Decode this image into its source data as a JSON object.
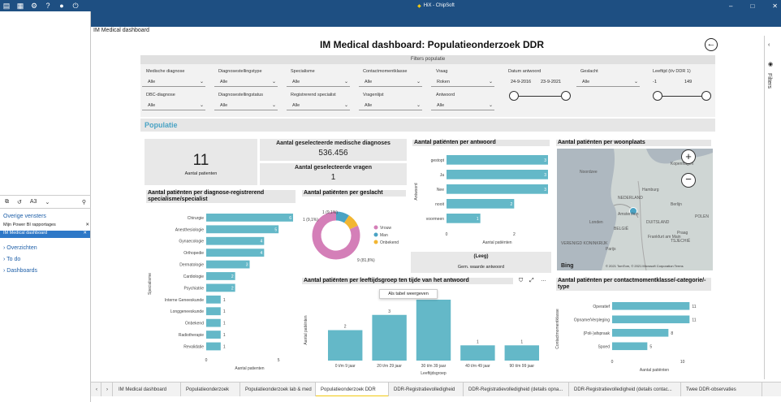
{
  "app": {
    "title": "HiX - ChipSoft"
  },
  "top_icons": [
    "document-icon",
    "grid-icon",
    "gear-icon",
    "help-icon",
    "user-icon",
    "power-icon"
  ],
  "left_pane": {
    "tool_label": "A3",
    "section_header": "Overige vensters",
    "items": [
      {
        "label": "Mijn Power BI rapportages"
      },
      {
        "label": "IM Medical dashboard"
      }
    ],
    "sections": [
      "Overzichten",
      "To do",
      "Dashboards"
    ]
  },
  "doc_title": "IM Medical dashboard",
  "report": {
    "title": "IM Medical dashboard: Populatieonderzoek DDR",
    "filters_header": "Filters populatie",
    "filters": [
      {
        "label": "Medische diagnose",
        "value": "Alle"
      },
      {
        "label": "Diagnosestellingstype",
        "value": "Alle"
      },
      {
        "label": "Specialisme",
        "value": "Alle"
      },
      {
        "label": "Contactmomentklasse",
        "value": "Alle"
      },
      {
        "label": "Vraag",
        "value": "Roken"
      },
      {
        "label": "DBC-diagnose",
        "value": "Alle"
      },
      {
        "label": "Diagnosestellingstatus",
        "value": "Alle"
      },
      {
        "label": "Registrerend specialist",
        "value": "Alle"
      },
      {
        "label": "Vragenlijst",
        "value": "Alle"
      },
      {
        "label": "Antwoord",
        "value": "Alle"
      }
    ],
    "datum": {
      "label": "Datum antwoord",
      "from": "24-9-2016",
      "to": "23-9-2021"
    },
    "geslacht": {
      "label": "Geslacht",
      "value": "Alle"
    },
    "leeftijd": {
      "label": "Leeftijd (t/v DDR 1)",
      "from": "-1",
      "to": "149"
    },
    "section": "Populatie",
    "kpi_patients": {
      "value": "11",
      "label": "Aantal patienten"
    },
    "kpi_diagnoses": {
      "title": "Aantal geselecteerde medische diagnoses",
      "value": "536.456"
    },
    "kpi_vragen": {
      "title": "Aantal geselecteerde vragen",
      "value": "1"
    },
    "kpi_leeg": {
      "title": "(Leeg)",
      "label": "Gem. waarde antwoord"
    },
    "map": {
      "title": "Aantal patiënten per woonplaats",
      "footer": "© 2021 TomTom, © 2021 Microsoft Corporation Terms",
      "brand": "Bing",
      "labels": [
        "Noordzee",
        "NEDERLAND",
        "DUITSLAND",
        "Berlijn",
        "Hamburg",
        "POLEN",
        "Londen",
        "BELGIË",
        "Parijs",
        "Praag",
        "TSJECHIË",
        "VERENIGD KONINKRIJK",
        "Amsterdam",
        "Kopenhagen",
        "Frankfurt am Main"
      ]
    },
    "tooltip": "Als tabel weergeven",
    "filter_pane": "Filters"
  },
  "tabs": [
    "IM Medical dashboard",
    "Populatieonderzoek",
    "Populatieonderzoek lab & med",
    "Populatieonderzoek DDR",
    "DDR-Registratievolledigheid",
    "DDR-Registratievolledigheid (details opna...",
    "DDR-Registratievolledigheid (details contac...",
    "Twee DDR-observaties"
  ],
  "colors": {
    "bar": "#64b8c8",
    "header": "#1e4f82",
    "accent": "#f2c811",
    "donut_man": "#4aa3c4",
    "donut_vrouw": "#d47fb8",
    "donut_onbekend": "#f2b632"
  },
  "chart_data": [
    {
      "type": "bar",
      "title": "Aantal patiënten per diagnose-registrerend specialisme/specialist",
      "ylabel": "Specialisme",
      "xlabel": "Aantal patienten",
      "categories": [
        "Chirurgie",
        "Anesthesiologie",
        "Gynaecologie",
        "Orthopedie",
        "Dermatologie",
        "Cardiologie",
        "Psychiatrie",
        "Interne Geneeskunde",
        "Longgeneeskunde",
        "Onbekend",
        "Radiotherapie",
        "Revalidatie"
      ],
      "values": [
        6,
        5,
        4,
        4,
        3,
        2,
        2,
        1,
        1,
        1,
        1,
        1
      ],
      "xticks": [
        "0",
        "5"
      ],
      "xlim": [
        0,
        6
      ]
    },
    {
      "type": "pie",
      "title": "Aantal patiënten per geslacht",
      "series": [
        {
          "name": "Vrouw",
          "value": 9,
          "label": "9 (81,8%)"
        },
        {
          "name": "Man",
          "value": 1,
          "label": "1 (9,1%)"
        },
        {
          "name": "Onbekend",
          "value": 1,
          "label": "1 (9,1%)"
        }
      ]
    },
    {
      "type": "bar",
      "title": "Aantal patiënten per antwoord",
      "ylabel": "Antwoord",
      "xlabel": "Aantal patiënten",
      "categories": [
        "gestopt",
        "Ja",
        "Nee",
        "nooit",
        "voormeen"
      ],
      "values": [
        3,
        3,
        3,
        2,
        1
      ],
      "xticks": [
        "0",
        "2"
      ],
      "xlim": [
        0,
        3
      ]
    },
    {
      "type": "bar",
      "title": "Aantal patiënten per leeftijdsgroep ten tijde van het antwoord",
      "ylabel": "Aantal patiënten",
      "xlabel": "Leeftijdsgroep",
      "categories": [
        "0 t/m 9 jaar",
        "20 t/m 29 jaar",
        "30 t/m 39 jaar",
        "40 t/m 49 jaar",
        "90 t/m 99 jaar"
      ],
      "values": [
        2,
        3,
        4,
        1,
        1
      ],
      "ylim": [
        0,
        4
      ]
    },
    {
      "type": "bar",
      "title": "Aantal patiënten per contactmomentklasse/-categorie/-type",
      "ylabel": "Contactmomentklasse",
      "xlabel": "Aantal patiënten",
      "categories": [
        "Operatief",
        "Opname/Verpleging",
        "(Poli-)afspraak",
        "Spoed"
      ],
      "values": [
        11,
        11,
        8,
        5
      ],
      "xticks": [
        "0",
        "10"
      ],
      "xlim": [
        0,
        12
      ]
    }
  ]
}
